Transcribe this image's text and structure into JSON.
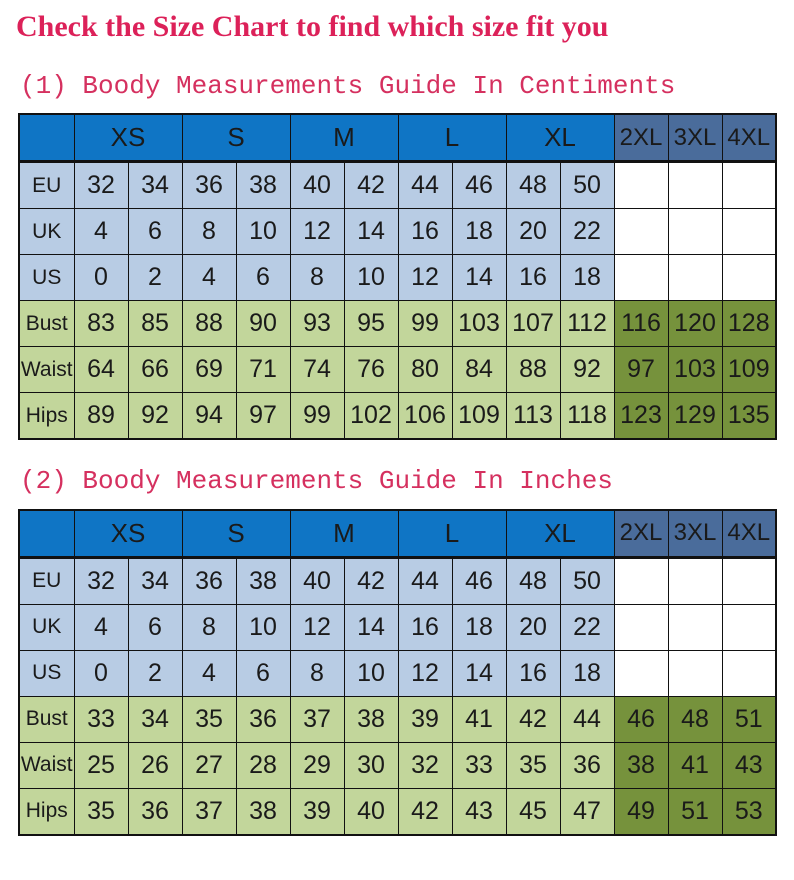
{
  "title": "Check the Size Chart to find which size fit you",
  "colors": {
    "title_pink": "#dc2159",
    "heading_pink": "#d5305f",
    "header_blue": "#0f75c5",
    "extended_header_blue": "#4a6c9b",
    "light_blue_row": "#b8cce4",
    "light_green_row": "#c2d69b",
    "dark_green_extended": "#76923c",
    "border_black": "#111111"
  },
  "chart_data": [
    {
      "type": "table",
      "title": "(1) Boody Measurements Guide In Centiments",
      "size_groups": [
        "XS",
        "S",
        "M",
        "L",
        "XL"
      ],
      "extended_sizes": [
        "2XL",
        "3XL",
        "4XL"
      ],
      "rows": [
        {
          "label": "EU",
          "values": [
            "32",
            "34",
            "36",
            "38",
            "40",
            "42",
            "44",
            "46",
            "48",
            "50"
          ],
          "extended": [
            "",
            "",
            ""
          ]
        },
        {
          "label": "UK",
          "values": [
            "4",
            "6",
            "8",
            "10",
            "12",
            "14",
            "16",
            "18",
            "20",
            "22"
          ],
          "extended": [
            "",
            "",
            ""
          ]
        },
        {
          "label": "US",
          "values": [
            "0",
            "2",
            "4",
            "6",
            "8",
            "10",
            "12",
            "14",
            "16",
            "18"
          ],
          "extended": [
            "",
            "",
            ""
          ]
        },
        {
          "label": "Bust",
          "values": [
            "83",
            "85",
            "88",
            "90",
            "93",
            "95",
            "99",
            "103",
            "107",
            "112"
          ],
          "extended": [
            "116",
            "120",
            "128"
          ]
        },
        {
          "label": "Waist",
          "values": [
            "64",
            "66",
            "69",
            "71",
            "74",
            "76",
            "80",
            "84",
            "88",
            "92"
          ],
          "extended": [
            "97",
            "103",
            "109"
          ]
        },
        {
          "label": "Hips",
          "values": [
            "89",
            "92",
            "94",
            "97",
            "99",
            "102",
            "106",
            "109",
            "113",
            "118"
          ],
          "extended": [
            "123",
            "129",
            "135"
          ]
        }
      ]
    },
    {
      "type": "table",
      "title": "(2) Boody Measurements Guide In Inches",
      "size_groups": [
        "XS",
        "S",
        "M",
        "L",
        "XL"
      ],
      "extended_sizes": [
        "2XL",
        "3XL",
        "4XL"
      ],
      "rows": [
        {
          "label": "EU",
          "values": [
            "32",
            "34",
            "36",
            "38",
            "40",
            "42",
            "44",
            "46",
            "48",
            "50"
          ],
          "extended": [
            "",
            "",
            ""
          ]
        },
        {
          "label": "UK",
          "values": [
            "4",
            "6",
            "8",
            "10",
            "12",
            "14",
            "16",
            "18",
            "20",
            "22"
          ],
          "extended": [
            "",
            "",
            ""
          ]
        },
        {
          "label": "US",
          "values": [
            "0",
            "2",
            "4",
            "6",
            "8",
            "10",
            "12",
            "14",
            "16",
            "18"
          ],
          "extended": [
            "",
            "",
            ""
          ]
        },
        {
          "label": "Bust",
          "values": [
            "33",
            "34",
            "35",
            "36",
            "37",
            "38",
            "39",
            "41",
            "42",
            "44"
          ],
          "extended": [
            "46",
            "48",
            "51"
          ]
        },
        {
          "label": "Waist",
          "values": [
            "25",
            "26",
            "27",
            "28",
            "29",
            "30",
            "32",
            "33",
            "35",
            "36"
          ],
          "extended": [
            "38",
            "41",
            "43"
          ]
        },
        {
          "label": "Hips",
          "values": [
            "35",
            "36",
            "37",
            "38",
            "39",
            "40",
            "42",
            "43",
            "45",
            "47"
          ],
          "extended": [
            "49",
            "51",
            "53"
          ]
        }
      ]
    }
  ]
}
